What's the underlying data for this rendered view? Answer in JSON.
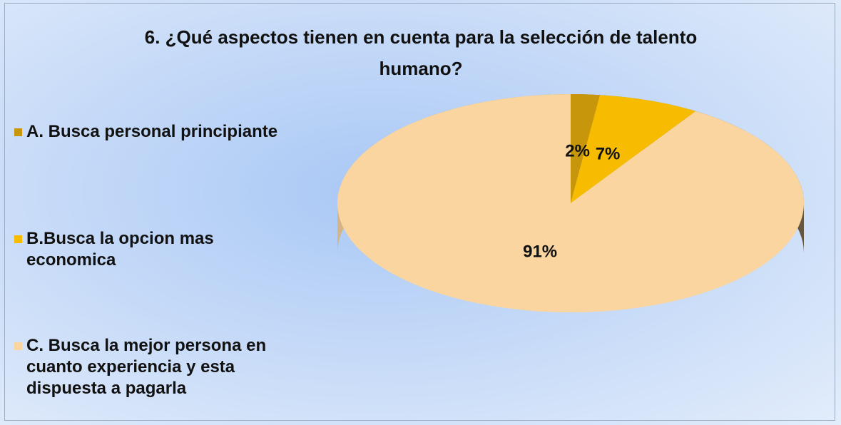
{
  "chart_data": {
    "type": "pie",
    "title": "6. ¿Qué aspectos tienen en cuenta para la selección de talento humano?",
    "categories": [
      "A. Busca personal principiante",
      "B.Busca la opcion mas economica",
      "C. Busca la mejor persona en cuanto experiencia y esta dispuesta a pagarla"
    ],
    "values": [
      2,
      7,
      91
    ],
    "value_labels": [
      "2%",
      "7%",
      "91%"
    ],
    "colors": [
      "#c8960a",
      "#f7bc00",
      "#fad59f"
    ],
    "legend": "left"
  }
}
